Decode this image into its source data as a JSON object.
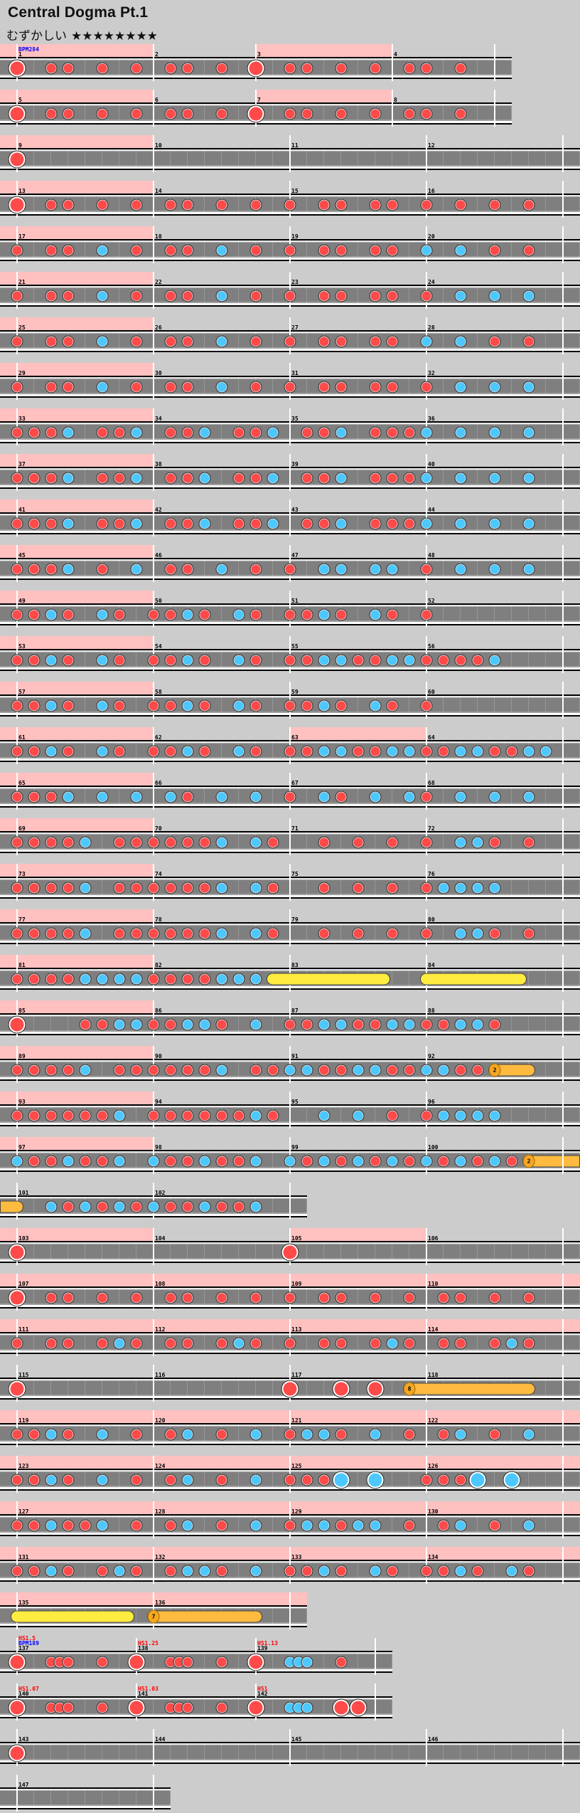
{
  "header": {
    "title": "Central Dogma Pt.1",
    "difficulty": "むずかしい",
    "stars": "★★★★★★★★",
    "star_count": 8
  },
  "colors": {
    "background": "#cccccc",
    "gogo": "#ffc0c0",
    "don": "#ff4a4a",
    "ka": "#4cc8ff",
    "drumroll": "#ffec40",
    "balloon": "#ffbb40",
    "hs_label": "#ff0000",
    "bpm_label": "#0000ff"
  },
  "note_legend": {
    "0": "none",
    "1": "don",
    "2": "ka",
    "3": "big-don",
    "4": "big-ka",
    "5": "drumroll-start",
    "7": "balloon-start",
    "8": "roll-end"
  },
  "rows": [
    [
      {
        "num": "1",
        "time": "4/4",
        "notes": "30110101",
        "gogo": true,
        "labels": [
          {
            "t": "BPM284",
            "c": "bpm"
          }
        ]
      },
      {
        "num": "2",
        "time": "3/4",
        "notes": "011010"
      },
      {
        "num": "3",
        "time": "4/4",
        "notes": "30110101",
        "gogo": true
      },
      {
        "num": "4",
        "time": "3/4",
        "notes": "011010"
      }
    ],
    [
      {
        "num": "5",
        "time": "4/4",
        "notes": "30110101",
        "gogo": true
      },
      {
        "num": "6",
        "time": "3/4",
        "notes": "011010"
      },
      {
        "num": "7",
        "time": "4/4",
        "notes": "30110101",
        "gogo": true
      },
      {
        "num": "8",
        "time": "3/4",
        "notes": "011010"
      }
    ],
    [
      {
        "num": "9",
        "time": "4/4",
        "notes": "30000000",
        "gogo": true
      },
      {
        "num": "10",
        "time": "4/4",
        "notes": "00000000"
      },
      {
        "num": "11",
        "time": "4/4",
        "notes": "00000000"
      },
      {
        "num": "12",
        "time": "4/4",
        "notes": "00000000"
      }
    ],
    [
      {
        "num": "13",
        "time": "4/4",
        "notes": "30110101",
        "gogo": true
      },
      {
        "num": "14",
        "time": "4/4",
        "notes": "01101010"
      },
      {
        "num": "15",
        "time": "4/4",
        "notes": "10110110"
      },
      {
        "num": "16",
        "time": "4/4",
        "notes": "10101010"
      }
    ],
    [
      {
        "num": "17",
        "time": "4/4",
        "notes": "10110201",
        "gogo": true
      },
      {
        "num": "18",
        "time": "4/4",
        "notes": "01102010"
      },
      {
        "num": "19",
        "time": "4/4",
        "notes": "10110110"
      },
      {
        "num": "20",
        "time": "4/4",
        "notes": "20201010"
      }
    ],
    [
      {
        "num": "21",
        "time": "4/4",
        "notes": "10110201",
        "gogo": true
      },
      {
        "num": "22",
        "time": "4/4",
        "notes": "01102010"
      },
      {
        "num": "23",
        "time": "4/4",
        "notes": "10110110"
      },
      {
        "num": "24",
        "time": "4/4",
        "notes": "10202020"
      }
    ],
    [
      {
        "num": "25",
        "time": "4/4",
        "notes": "10110201",
        "gogo": true
      },
      {
        "num": "26",
        "time": "4/4",
        "notes": "01102010"
      },
      {
        "num": "27",
        "time": "4/4",
        "notes": "10110110"
      },
      {
        "num": "28",
        "time": "4/4",
        "notes": "20201010"
      }
    ],
    [
      {
        "num": "29",
        "time": "4/4",
        "notes": "10110201",
        "gogo": true
      },
      {
        "num": "30",
        "time": "4/4",
        "notes": "01102010"
      },
      {
        "num": "31",
        "time": "4/4",
        "notes": "10110110"
      },
      {
        "num": "32",
        "time": "4/4",
        "notes": "10202020"
      }
    ],
    [
      {
        "num": "33",
        "time": "4/4",
        "notes": "11120112",
        "gogo": true
      },
      {
        "num": "34",
        "time": "4/4",
        "notes": "01120112"
      },
      {
        "num": "35",
        "time": "4/4",
        "notes": "01120111"
      },
      {
        "num": "36",
        "time": "4/4",
        "notes": "20202020"
      }
    ],
    [
      {
        "num": "37",
        "time": "4/4",
        "notes": "11120112",
        "gogo": true
      },
      {
        "num": "38",
        "time": "4/4",
        "notes": "01120112"
      },
      {
        "num": "39",
        "time": "4/4",
        "notes": "01120111"
      },
      {
        "num": "40",
        "time": "4/4",
        "notes": "20202020"
      }
    ],
    [
      {
        "num": "41",
        "time": "4/4",
        "notes": "11120112",
        "gogo": true
      },
      {
        "num": "42",
        "time": "4/4",
        "notes": "01120112"
      },
      {
        "num": "43",
        "time": "4/4",
        "notes": "01120111"
      },
      {
        "num": "44",
        "time": "4/4",
        "notes": "20202020"
      }
    ],
    [
      {
        "num": "45",
        "time": "4/4",
        "notes": "11120102",
        "gogo": true
      },
      {
        "num": "46",
        "time": "4/4",
        "notes": "01102010"
      },
      {
        "num": "47",
        "time": "4/4",
        "notes": "10220220"
      },
      {
        "num": "48",
        "time": "4/4",
        "notes": "10202020"
      }
    ],
    [
      {
        "num": "49",
        "time": "4/4",
        "notes": "11210210",
        "gogo": true
      },
      {
        "num": "50",
        "time": "4/4",
        "notes": "11210210"
      },
      {
        "num": "51",
        "time": "4/4",
        "notes": "11210210"
      },
      {
        "num": "52",
        "time": "4/4",
        "notes": "10000000"
      }
    ],
    [
      {
        "num": "53",
        "time": "4/4",
        "notes": "11210210",
        "gogo": true
      },
      {
        "num": "54",
        "time": "4/4",
        "notes": "11210210"
      },
      {
        "num": "55",
        "time": "4/4",
        "notes": "11221122"
      },
      {
        "num": "56",
        "time": "4/4",
        "notes": "11112000"
      }
    ],
    [
      {
        "num": "57",
        "time": "4/4",
        "notes": "11210210",
        "gogo": true
      },
      {
        "num": "58",
        "time": "4/4",
        "notes": "11210210"
      },
      {
        "num": "59",
        "time": "4/4",
        "notes": "11210210"
      },
      {
        "num": "60",
        "time": "4/4",
        "notes": "10000000"
      }
    ],
    [
      {
        "num": "61",
        "time": "4/4",
        "notes": "11210210",
        "gogo": true
      },
      {
        "num": "62",
        "time": "4/4",
        "notes": "11210210"
      },
      {
        "num": "63",
        "time": "4/4",
        "notes": "11221122",
        "gogo": true
      },
      {
        "num": "64",
        "time": "4/4",
        "notes": "11221122"
      }
    ],
    [
      {
        "num": "65",
        "time": "4/4",
        "notes": "11120202",
        "gogo": true
      },
      {
        "num": "66",
        "time": "4/4",
        "notes": "02102020"
      },
      {
        "num": "67",
        "time": "4/4",
        "notes": "10210202"
      },
      {
        "num": "68",
        "time": "4/4",
        "notes": "10202020"
      }
    ],
    [
      {
        "num": "69",
        "time": "4/4",
        "notes": "11112011",
        "gogo": true
      },
      {
        "num": "70",
        "time": "4/4",
        "notes": "11112021"
      },
      {
        "num": "71",
        "time": "4/4",
        "notes": "00101010"
      },
      {
        "num": "72",
        "time": "4/4",
        "notes": "10221010"
      }
    ],
    [
      {
        "num": "73",
        "time": "4/4",
        "notes": "11112011",
        "gogo": true
      },
      {
        "num": "74",
        "time": "4/4",
        "notes": "11112021"
      },
      {
        "num": "75",
        "time": "4/4",
        "notes": "00101010"
      },
      {
        "num": "76",
        "time": "4/4",
        "notes": "12222000"
      }
    ],
    [
      {
        "num": "77",
        "time": "4/4",
        "notes": "11112011",
        "gogo": true
      },
      {
        "num": "78",
        "time": "4/4",
        "notes": "11112021"
      },
      {
        "num": "79",
        "time": "4/4",
        "notes": "00101010"
      },
      {
        "num": "80",
        "time": "4/4",
        "notes": "10221010"
      }
    ],
    [
      {
        "num": "81",
        "time": "4/4",
        "notes": "11112222",
        "gogo": true
      },
      {
        "num": "82",
        "time": "4/4",
        "notes": "11112225"
      },
      {
        "num": "83",
        "time": "4/4",
        "notes": "0000000000080000"
      },
      {
        "num": "84",
        "time": "4/4",
        "notes": "5000000000080000"
      }
    ],
    [
      {
        "num": "85",
        "time": "4/4",
        "notes": "30001122",
        "gogo": true
      },
      {
        "num": "86",
        "time": "4/4",
        "notes": "11221020"
      },
      {
        "num": "87",
        "time": "4/4",
        "notes": "11221122"
      },
      {
        "num": "88",
        "time": "4/4",
        "notes": "11221000"
      }
    ],
    [
      {
        "num": "89",
        "time": "4/4",
        "notes": "11112011",
        "gogo": true
      },
      {
        "num": "90",
        "time": "4/4",
        "notes": "11112011"
      },
      {
        "num": "91",
        "time": "4/4",
        "notes": "22112211"
      },
      {
        "num": "92",
        "time": "4/4",
        "notes": "22117080",
        "balloon": "2"
      }
    ],
    [
      {
        "num": "93",
        "time": "4/4",
        "notes": "11111120",
        "gogo": true
      },
      {
        "num": "94",
        "time": "4/4",
        "notes": "11111121"
      },
      {
        "num": "95",
        "time": "4/4",
        "notes": "00202010"
      },
      {
        "num": "96",
        "time": "4/4",
        "notes": "12222000"
      }
    ],
    [
      {
        "num": "97",
        "time": "4/4",
        "notes": "21121120",
        "gogo": true
      },
      {
        "num": "98",
        "time": "4/4",
        "notes": "21121120"
      },
      {
        "num": "99",
        "time": "4/4",
        "notes": "21212121"
      },
      {
        "num": "100",
        "time": "4/4",
        "notes": "21212170",
        "balloon": "2"
      }
    ],
    [
      {
        "num": "101",
        "time": "4/4",
        "notes": "80212121"
      },
      {
        "num": "102",
        "time": "4/4",
        "notes": "21121120"
      }
    ],
    [
      {
        "num": "103",
        "time": "4/4",
        "notes": "30000000",
        "gogo": true
      },
      {
        "num": "104",
        "time": "4/4",
        "notes": "00000000"
      },
      {
        "num": "105",
        "time": "4/4",
        "notes": "30000000",
        "gogo": true
      },
      {
        "num": "106",
        "time": "4/4",
        "notes": "00000000"
      }
    ],
    [
      {
        "num": "107",
        "time": "4/4",
        "notes": "30110101",
        "gogo": true
      },
      {
        "num": "108",
        "time": "4/4",
        "notes": "01101010",
        "gogo": true
      },
      {
        "num": "109",
        "time": "4/4",
        "notes": "10110101",
        "gogo": true
      },
      {
        "num": "110",
        "time": "4/4",
        "notes": "01101010",
        "gogo": true
      }
    ],
    [
      {
        "num": "111",
        "time": "4/4",
        "notes": "10110121",
        "gogo": true
      },
      {
        "num": "112",
        "time": "4/4",
        "notes": "01101210",
        "gogo": true
      },
      {
        "num": "113",
        "time": "4/4",
        "notes": "10110121",
        "gogo": true
      },
      {
        "num": "114",
        "time": "4/4",
        "notes": "01101210",
        "gogo": true
      }
    ],
    [
      {
        "num": "115",
        "time": "4/4",
        "notes": "30000000"
      },
      {
        "num": "116",
        "time": "4/4",
        "notes": "00000000"
      },
      {
        "num": "117",
        "time": "4/4",
        "notes": "30030307",
        "balloon": "8"
      },
      {
        "num": "118",
        "time": "4/4",
        "notes": "00000080"
      }
    ],
    [
      {
        "num": "119",
        "time": "4/4",
        "notes": "11210201",
        "gogo": true
      },
      {
        "num": "120",
        "time": "4/4",
        "notes": "01201020",
        "gogo": true
      },
      {
        "num": "121",
        "time": "4/4",
        "notes": "12210201",
        "gogo": true
      },
      {
        "num": "122",
        "time": "4/4",
        "notes": "01201020",
        "gogo": true
      }
    ],
    [
      {
        "num": "123",
        "time": "4/4",
        "notes": "11210201",
        "gogo": true
      },
      {
        "num": "124",
        "time": "4/4",
        "notes": "01201020",
        "gogo": true
      },
      {
        "num": "125",
        "time": "4/4",
        "notes": "11140400",
        "gogo": true
      },
      {
        "num": "126",
        "time": "4/4",
        "notes": "11140400",
        "gogo": true
      }
    ],
    [
      {
        "num": "127",
        "time": "4/4",
        "notes": "11211201",
        "gogo": true
      },
      {
        "num": "128",
        "time": "4/4",
        "notes": "01201020",
        "gogo": true
      },
      {
        "num": "129",
        "time": "4/4",
        "notes": "12212201",
        "gogo": true
      },
      {
        "num": "130",
        "time": "4/4",
        "notes": "01201020",
        "gogo": true
      }
    ],
    [
      {
        "num": "131",
        "time": "4/4",
        "notes": "11210121",
        "gogo": true
      },
      {
        "num": "132",
        "time": "4/4",
        "notes": "01221020",
        "gogo": true
      },
      {
        "num": "133",
        "time": "4/4",
        "notes": "11210210",
        "gogo": true
      },
      {
        "num": "134",
        "time": "4/4",
        "notes": "11210210",
        "gogo": true
      }
    ],
    [
      {
        "num": "135",
        "time": "4/4",
        "notes": "5000000000000800",
        "gogo": true
      },
      {
        "num": "136",
        "time": "4/4",
        "notes": "70000080",
        "gogo": true,
        "balloon": "7"
      }
    ],
    [
      {
        "num": "137",
        "time": "7/8",
        "notes": "30001110001000",
        "labels": [
          {
            "t": "BPM189",
            "c": "bpm"
          },
          {
            "t": "HS1.5",
            "c": "hs"
          }
        ]
      },
      {
        "num": "138",
        "time": "7/8",
        "notes": "30001110001000",
        "labels": [
          {
            "t": "HS1.25",
            "c": "hs"
          }
        ]
      },
      {
        "num": "139",
        "time": "7/8",
        "notes": "30002220001000",
        "labels": [
          {
            "t": "HS1.13",
            "c": "hs"
          }
        ]
      }
    ],
    [
      {
        "num": "140",
        "time": "7/8",
        "notes": "30001110001000",
        "labels": [
          {
            "t": "HS1.07",
            "c": "hs"
          }
        ]
      },
      {
        "num": "141",
        "time": "7/8",
        "notes": "30001110001000",
        "labels": [
          {
            "t": "HS1.03",
            "c": "hs"
          }
        ]
      },
      {
        "num": "142",
        "time": "7/8",
        "notes": "30002220003030",
        "labels": [
          {
            "t": "HS1",
            "c": "hs"
          }
        ]
      }
    ],
    [
      {
        "num": "143",
        "time": "4/4",
        "notes": "30000000"
      },
      {
        "num": "144",
        "time": "4/4",
        "notes": "00000000"
      },
      {
        "num": "145",
        "time": "4/4",
        "notes": "00000000"
      },
      {
        "num": "146",
        "time": "4/4",
        "notes": "00000000"
      }
    ],
    [
      {
        "num": "147",
        "time": "4/4",
        "notes": "00000000"
      }
    ]
  ]
}
